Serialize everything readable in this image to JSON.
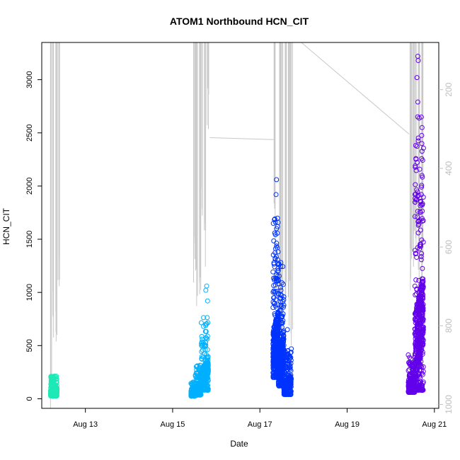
{
  "chart_data": {
    "type": "scatter",
    "title": "ATOM1 Northbound HCN_CIT",
    "xlabel": "Date",
    "ylabel": "HCN_CIT",
    "x_ticks": [
      "Aug 13",
      "Aug 15",
      "Aug 17",
      "Aug 19",
      "Aug 21"
    ],
    "x_tick_days": [
      13,
      15,
      17,
      19,
      21
    ],
    "xlim": [
      12.0,
      21.1
    ],
    "ylim": [
      -90,
      3350
    ],
    "y_ticks": [
      0,
      500,
      1000,
      1500,
      2000,
      2500,
      3000
    ],
    "right_axis": {
      "ticks": [
        200,
        400,
        600,
        800,
        1000
      ],
      "lim": [
        80,
        1010
      ],
      "color": "#bebebe",
      "reversed": true
    },
    "marker": "open-circle",
    "grid": false,
    "series": [
      {
        "color": "#1de9b6",
        "clusters": [
          {
            "x_start": 12.2,
            "x_end": 12.35,
            "y_min": 25,
            "y_max": 215,
            "n": 320
          }
        ]
      },
      {
        "color": "#00b0ff",
        "clusters": [
          {
            "x_start": 15.42,
            "x_end": 15.52,
            "y_min": 25,
            "y_max": 160,
            "n": 200
          },
          {
            "x_start": 15.52,
            "x_end": 15.65,
            "y_min": 35,
            "y_max": 320,
            "n": 240
          },
          {
            "x_start": 15.65,
            "x_end": 15.82,
            "y_min": 80,
            "y_max": 780,
            "n": 320
          }
        ],
        "outliers": [
          {
            "x": 15.78,
            "y": 1060
          },
          {
            "x": 15.76,
            "y": 1020
          },
          {
            "x": 15.8,
            "y": 920
          }
        ]
      },
      {
        "color": "#0033ff",
        "clusters": [
          {
            "x_start": 17.3,
            "x_end": 17.42,
            "y_min": 200,
            "y_max": 1720,
            "n": 420
          },
          {
            "x_start": 17.42,
            "x_end": 17.55,
            "y_min": 120,
            "y_max": 1300,
            "n": 320
          },
          {
            "x_start": 17.55,
            "x_end": 17.72,
            "y_min": 40,
            "y_max": 480,
            "n": 320
          }
        ],
        "outliers": [
          {
            "x": 17.38,
            "y": 2060
          },
          {
            "x": 17.37,
            "y": 1920
          },
          {
            "x": 17.63,
            "y": 650
          }
        ]
      },
      {
        "color": "#6200ea",
        "clusters": [
          {
            "x_start": 20.4,
            "x_end": 20.55,
            "y_min": 60,
            "y_max": 420,
            "n": 320
          },
          {
            "x_start": 20.55,
            "x_end": 20.75,
            "y_min": 80,
            "y_max": 2700,
            "n": 520
          }
        ],
        "outliers": [
          {
            "x": 20.62,
            "y": 3220
          },
          {
            "x": 20.63,
            "y": 3180
          },
          {
            "x": 20.6,
            "y": 3020
          },
          {
            "x": 20.62,
            "y": 2790
          }
        ]
      }
    ],
    "secondary_line": {
      "color": "#c8c8c8",
      "spikes": [
        {
          "x": 12.2,
          "base": 1010
        },
        {
          "x": 12.27,
          "base": 830
        },
        {
          "x": 12.33,
          "base": 840
        },
        {
          "x": 12.4,
          "base": 700
        },
        {
          "x": 15.48,
          "base": 690
        },
        {
          "x": 15.55,
          "base": 750
        },
        {
          "x": 15.62,
          "base": 720
        },
        {
          "x": 15.68,
          "base": 520
        },
        {
          "x": 15.75,
          "base": 650
        },
        {
          "x": 15.82,
          "base": 300
        },
        {
          "x": 17.35,
          "base": 600
        },
        {
          "x": 17.45,
          "base": 780
        },
        {
          "x": 17.52,
          "base": 900
        },
        {
          "x": 17.58,
          "base": 750
        },
        {
          "x": 17.67,
          "base": 800
        },
        {
          "x": 17.72,
          "base": 850
        },
        {
          "x": 20.45,
          "base": 710
        },
        {
          "x": 20.52,
          "base": 650
        },
        {
          "x": 20.58,
          "base": 600
        },
        {
          "x": 20.65,
          "base": 680
        },
        {
          "x": 20.72,
          "base": 720
        }
      ],
      "connectors": [
        {
          "x1": 15.85,
          "y1": 322,
          "x2": 17.35,
          "y2": 327
        },
        {
          "x1": 17.95,
          "y1": 80,
          "x2": 20.42,
          "y2": 313
        }
      ]
    }
  }
}
